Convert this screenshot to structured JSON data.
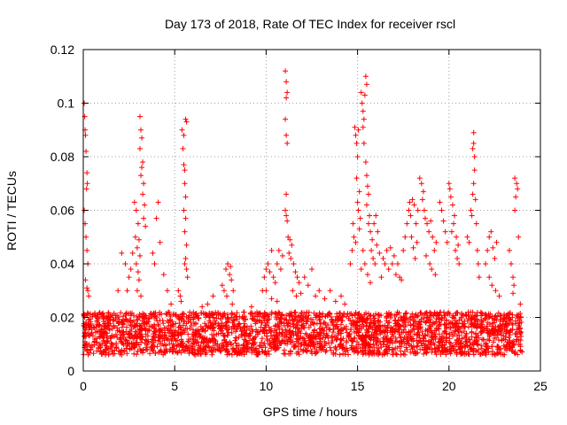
{
  "chart_data": {
    "type": "scatter",
    "title": "Day 173 of 2018, Rate Of TEC Index for receiver rscl",
    "xlabel": "GPS time / hours",
    "ylabel": "ROTI / TECUs",
    "xlim": [
      0,
      25
    ],
    "ylim": [
      0,
      0.12
    ],
    "xticks": [
      "0",
      "5",
      "10",
      "15",
      "20",
      "25"
    ],
    "yticks": [
      "0",
      "0.02",
      "0.04",
      "0.06",
      "0.08",
      "0.1",
      "0.12"
    ],
    "xtick_values": [
      0,
      5,
      10,
      15,
      20,
      25
    ],
    "ytick_values": [
      0,
      0.02,
      0.04,
      0.06,
      0.08,
      0.1,
      0.12
    ],
    "grid": true,
    "marker": "+",
    "color": "#ff0000",
    "background_band": {
      "x_range": [
        0,
        24
      ],
      "y_range": [
        0.006,
        0.022
      ],
      "density_per_hour": 110
    },
    "series": [
      {
        "name": "ROTI",
        "points": [
          [
            0.05,
            0.1
          ],
          [
            0.08,
            0.095
          ],
          [
            0.1,
            0.09
          ],
          [
            0.12,
            0.088
          ],
          [
            0.15,
            0.082
          ],
          [
            0.2,
            0.074
          ],
          [
            0.22,
            0.07
          ],
          [
            0.18,
            0.068
          ],
          [
            0.05,
            0.06
          ],
          [
            0.1,
            0.055
          ],
          [
            0.15,
            0.05
          ],
          [
            0.2,
            0.045
          ],
          [
            0.25,
            0.04
          ],
          [
            0.12,
            0.034
          ],
          [
            0.2,
            0.031
          ],
          [
            0.25,
            0.03
          ],
          [
            0.3,
            0.028
          ],
          [
            1.9,
            0.03
          ],
          [
            2.1,
            0.044
          ],
          [
            2.3,
            0.04
          ],
          [
            2.5,
            0.035
          ],
          [
            2.4,
            0.03
          ],
          [
            2.7,
            0.044
          ],
          [
            2.6,
            0.038
          ],
          [
            2.8,
            0.063
          ],
          [
            2.9,
            0.06
          ],
          [
            3.0,
            0.055
          ],
          [
            2.85,
            0.05
          ],
          [
            3.05,
            0.049
          ],
          [
            2.95,
            0.046
          ],
          [
            3.1,
            0.043
          ],
          [
            2.9,
            0.04
          ],
          [
            3.0,
            0.037
          ],
          [
            3.05,
            0.034
          ],
          [
            2.95,
            0.03
          ],
          [
            3.15,
            0.028
          ],
          [
            3.1,
            0.095
          ],
          [
            3.15,
            0.09
          ],
          [
            3.2,
            0.087
          ],
          [
            3.1,
            0.083
          ],
          [
            3.25,
            0.078
          ],
          [
            3.2,
            0.076
          ],
          [
            3.15,
            0.073
          ],
          [
            3.3,
            0.07
          ],
          [
            3.25,
            0.066
          ],
          [
            3.35,
            0.062
          ],
          [
            3.3,
            0.057
          ],
          [
            3.4,
            0.054
          ],
          [
            3.8,
            0.044
          ],
          [
            3.9,
            0.04
          ],
          [
            4.1,
            0.063
          ],
          [
            4.0,
            0.057
          ],
          [
            4.2,
            0.048
          ],
          [
            4.4,
            0.036
          ],
          [
            4.6,
            0.03
          ],
          [
            4.8,
            0.025
          ],
          [
            5.2,
            0.03
          ],
          [
            5.3,
            0.028
          ],
          [
            5.35,
            0.026
          ],
          [
            5.4,
            0.09
          ],
          [
            5.5,
            0.088
          ],
          [
            5.45,
            0.083
          ],
          [
            5.5,
            0.077
          ],
          [
            5.55,
            0.075
          ],
          [
            5.6,
            0.094
          ],
          [
            5.65,
            0.093
          ],
          [
            5.55,
            0.07
          ],
          [
            5.6,
            0.065
          ],
          [
            5.5,
            0.06
          ],
          [
            5.6,
            0.057
          ],
          [
            5.55,
            0.052
          ],
          [
            5.65,
            0.047
          ],
          [
            5.6,
            0.042
          ],
          [
            5.55,
            0.04
          ],
          [
            5.65,
            0.038
          ],
          [
            5.7,
            0.035
          ],
          [
            6.5,
            0.024
          ],
          [
            6.8,
            0.025
          ],
          [
            7.1,
            0.028
          ],
          [
            7.6,
            0.032
          ],
          [
            7.7,
            0.03
          ],
          [
            7.8,
            0.038
          ],
          [
            7.9,
            0.04
          ],
          [
            8.0,
            0.036
          ],
          [
            8.1,
            0.034
          ],
          [
            8.2,
            0.03
          ],
          [
            8.05,
            0.039
          ],
          [
            7.85,
            0.028
          ],
          [
            8.15,
            0.025
          ],
          [
            8.8,
            0.022
          ],
          [
            9.2,
            0.024
          ],
          [
            9.5,
            0.022
          ],
          [
            9.8,
            0.03
          ],
          [
            9.9,
            0.035
          ],
          [
            10.0,
            0.038
          ],
          [
            10.1,
            0.04
          ],
          [
            10.2,
            0.037
          ],
          [
            10.3,
            0.045
          ],
          [
            10.4,
            0.035
          ],
          [
            10.5,
            0.033
          ],
          [
            10.6,
            0.04
          ],
          [
            10.7,
            0.045
          ],
          [
            10.8,
            0.038
          ],
          [
            10.9,
            0.043
          ],
          [
            10.0,
            0.03
          ],
          [
            10.3,
            0.027
          ],
          [
            10.6,
            0.026
          ],
          [
            11.05,
            0.112
          ],
          [
            11.1,
            0.108
          ],
          [
            11.15,
            0.104
          ],
          [
            11.1,
            0.102
          ],
          [
            11.05,
            0.094
          ],
          [
            11.1,
            0.088
          ],
          [
            11.15,
            0.085
          ],
          [
            11.1,
            0.066
          ],
          [
            11.05,
            0.06
          ],
          [
            11.1,
            0.058
          ],
          [
            11.15,
            0.056
          ],
          [
            11.2,
            0.05
          ],
          [
            11.3,
            0.049
          ],
          [
            11.4,
            0.047
          ],
          [
            11.25,
            0.044
          ],
          [
            11.35,
            0.042
          ],
          [
            11.5,
            0.04
          ],
          [
            11.6,
            0.037
          ],
          [
            11.7,
            0.035
          ],
          [
            11.8,
            0.033
          ],
          [
            11.45,
            0.03
          ],
          [
            11.65,
            0.028
          ],
          [
            11.9,
            0.029
          ],
          [
            12.1,
            0.035
          ],
          [
            12.3,
            0.032
          ],
          [
            12.5,
            0.038
          ],
          [
            12.7,
            0.028
          ],
          [
            12.9,
            0.03
          ],
          [
            13.2,
            0.027
          ],
          [
            13.5,
            0.03
          ],
          [
            13.8,
            0.026
          ],
          [
            14.1,
            0.028
          ],
          [
            14.3,
            0.025
          ],
          [
            14.6,
            0.04
          ],
          [
            14.7,
            0.045
          ],
          [
            14.8,
            0.05
          ],
          [
            14.75,
            0.055
          ],
          [
            14.9,
            0.048
          ],
          [
            14.85,
            0.091
          ],
          [
            14.9,
            0.088
          ],
          [
            14.95,
            0.085
          ],
          [
            15.0,
            0.08
          ],
          [
            15.05,
            0.09
          ],
          [
            14.95,
            0.072
          ],
          [
            15.1,
            0.067
          ],
          [
            15.0,
            0.063
          ],
          [
            15.05,
            0.06
          ],
          [
            15.15,
            0.057
          ],
          [
            15.1,
            0.053
          ],
          [
            15.2,
            0.104
          ],
          [
            15.25,
            0.1
          ],
          [
            15.3,
            0.097
          ],
          [
            15.35,
            0.094
          ],
          [
            15.3,
            0.091
          ],
          [
            15.45,
            0.11
          ],
          [
            15.5,
            0.107
          ],
          [
            15.4,
            0.103
          ],
          [
            15.35,
            0.085
          ],
          [
            15.45,
            0.078
          ],
          [
            15.5,
            0.073
          ],
          [
            15.55,
            0.069
          ],
          [
            15.6,
            0.066
          ],
          [
            15.5,
            0.062
          ],
          [
            15.65,
            0.058
          ],
          [
            15.6,
            0.055
          ],
          [
            15.7,
            0.052
          ],
          [
            15.8,
            0.049
          ],
          [
            15.9,
            0.055
          ],
          [
            16.0,
            0.058
          ],
          [
            16.1,
            0.052
          ],
          [
            15.75,
            0.045
          ],
          [
            15.85,
            0.042
          ],
          [
            15.95,
            0.04
          ],
          [
            16.05,
            0.047
          ],
          [
            16.2,
            0.044
          ],
          [
            15.3,
            0.045
          ],
          [
            15.4,
            0.04
          ],
          [
            15.2,
            0.038
          ],
          [
            15.55,
            0.036
          ],
          [
            15.7,
            0.033
          ],
          [
            16.3,
            0.035
          ],
          [
            16.4,
            0.042
          ],
          [
            16.5,
            0.04
          ],
          [
            16.6,
            0.045
          ],
          [
            16.7,
            0.038
          ],
          [
            16.8,
            0.046
          ],
          [
            16.9,
            0.04
          ],
          [
            17.0,
            0.043
          ],
          [
            17.1,
            0.036
          ],
          [
            17.2,
            0.04
          ],
          [
            17.3,
            0.035
          ],
          [
            17.4,
            0.034
          ],
          [
            17.5,
            0.045
          ],
          [
            17.6,
            0.05
          ],
          [
            17.7,
            0.055
          ],
          [
            17.8,
            0.06
          ],
          [
            17.85,
            0.063
          ],
          [
            17.9,
            0.058
          ],
          [
            18.0,
            0.064
          ],
          [
            18.1,
            0.062
          ],
          [
            18.2,
            0.055
          ],
          [
            18.3,
            0.06
          ],
          [
            17.95,
            0.05
          ],
          [
            18.05,
            0.046
          ],
          [
            18.15,
            0.042
          ],
          [
            18.25,
            0.048
          ],
          [
            18.4,
            0.072
          ],
          [
            18.5,
            0.07
          ],
          [
            18.6,
            0.067
          ],
          [
            18.55,
            0.064
          ],
          [
            18.65,
            0.06
          ],
          [
            18.7,
            0.057
          ],
          [
            18.8,
            0.055
          ],
          [
            18.9,
            0.052
          ],
          [
            19.0,
            0.056
          ],
          [
            19.1,
            0.05
          ],
          [
            19.2,
            0.045
          ],
          [
            19.3,
            0.048
          ],
          [
            18.75,
            0.043
          ],
          [
            18.95,
            0.04
          ],
          [
            19.05,
            0.038
          ],
          [
            19.25,
            0.036
          ],
          [
            19.5,
            0.063
          ],
          [
            19.6,
            0.06
          ],
          [
            19.7,
            0.056
          ],
          [
            19.8,
            0.052
          ],
          [
            19.9,
            0.048
          ],
          [
            20.0,
            0.07
          ],
          [
            20.05,
            0.068
          ],
          [
            20.1,
            0.065
          ],
          [
            20.2,
            0.062
          ],
          [
            20.3,
            0.058
          ],
          [
            20.25,
            0.055
          ],
          [
            20.15,
            0.052
          ],
          [
            20.4,
            0.05
          ],
          [
            20.5,
            0.047
          ],
          [
            20.35,
            0.045
          ],
          [
            20.45,
            0.042
          ],
          [
            20.55,
            0.04
          ],
          [
            21.0,
            0.05
          ],
          [
            21.1,
            0.048
          ],
          [
            21.2,
            0.06
          ],
          [
            21.25,
            0.058
          ],
          [
            21.3,
            0.066
          ],
          [
            21.35,
            0.07
          ],
          [
            21.4,
            0.075
          ],
          [
            21.3,
            0.083
          ],
          [
            21.35,
            0.085
          ],
          [
            21.4,
            0.08
          ],
          [
            21.35,
            0.089
          ],
          [
            21.45,
            0.064
          ],
          [
            21.5,
            0.055
          ],
          [
            21.55,
            0.045
          ],
          [
            21.6,
            0.04
          ],
          [
            21.65,
            0.035
          ],
          [
            22.0,
            0.04
          ],
          [
            22.1,
            0.045
          ],
          [
            22.2,
            0.05
          ],
          [
            22.3,
            0.052
          ],
          [
            22.4,
            0.046
          ],
          [
            22.5,
            0.042
          ],
          [
            22.6,
            0.048
          ],
          [
            22.2,
            0.035
          ],
          [
            22.35,
            0.032
          ],
          [
            22.55,
            0.03
          ],
          [
            22.75,
            0.028
          ],
          [
            23.3,
            0.045
          ],
          [
            23.4,
            0.04
          ],
          [
            23.5,
            0.035
          ],
          [
            23.55,
            0.032
          ],
          [
            23.6,
            0.06
          ],
          [
            23.65,
            0.065
          ],
          [
            23.7,
            0.07
          ],
          [
            23.75,
            0.068
          ],
          [
            23.6,
            0.072
          ],
          [
            23.8,
            0.05
          ],
          [
            23.5,
            0.029
          ],
          [
            23.9,
            0.025
          ]
        ]
      }
    ]
  }
}
